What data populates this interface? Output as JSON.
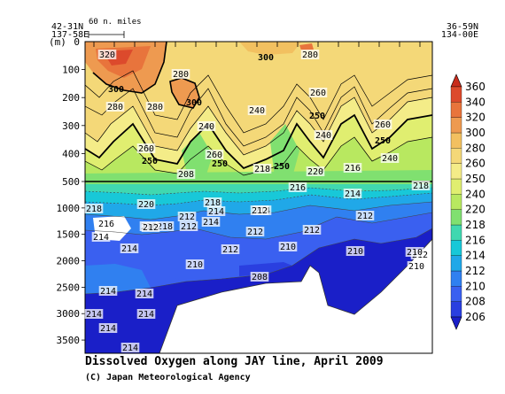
{
  "chart_data": {
    "type": "heatmap",
    "title": "Dissolved Oxygen along JAY line, April 2009",
    "credit": "(C) Japan Meteorological Agency",
    "scale_bar_label": "60 n. miles",
    "start_station": {
      "lat": "42-31N",
      "lon": "137-58E"
    },
    "end_station": {
      "lat": "36-59N",
      "lon": "134-00E"
    },
    "ylabel": "(m)",
    "upper_y_ticks": [
      0,
      100,
      200,
      300,
      400,
      500
    ],
    "lower_y_ticks": [
      1000,
      1500,
      2000,
      2500,
      3000,
      3500
    ],
    "upper_ylim": [
      0,
      500
    ],
    "lower_ylim": [
      500,
      3750
    ],
    "colorbar": {
      "levels": [
        206,
        208,
        210,
        212,
        214,
        216,
        218,
        220,
        240,
        250,
        260,
        280,
        300,
        320,
        340,
        360
      ],
      "colors": [
        "#1a1fc8",
        "#2a3fe0",
        "#3a60f0",
        "#3080f0",
        "#20a8e8",
        "#18c8d8",
        "#40d8b0",
        "#80e070",
        "#b8e860",
        "#e0ee70",
        "#f4ec88",
        "#f4d878",
        "#f2c060",
        "#ee9a50",
        "#e8743c",
        "#dc4a2c",
        "#c82c1c"
      ]
    },
    "contour_labels_upper": [
      "320",
      "300",
      "300",
      "300",
      "280",
      "280",
      "280",
      "280",
      "260",
      "260",
      "260",
      "260",
      "250",
      "250",
      "250",
      "250",
      "250",
      "240",
      "240",
      "240",
      "240",
      "220",
      "218",
      "216",
      "208"
    ],
    "contour_labels_lower": [
      "218",
      "220",
      "218",
      "216",
      "214",
      "214",
      "212",
      "212",
      "212",
      "212",
      "212",
      "212",
      "212",
      "210",
      "210",
      "210",
      "210",
      "208",
      "214",
      "214",
      "214",
      "214",
      "214",
      "216",
      "218",
      "216",
      "218",
      "214",
      "210",
      "212",
      "214",
      "214",
      "214",
      "214",
      "212"
    ]
  }
}
